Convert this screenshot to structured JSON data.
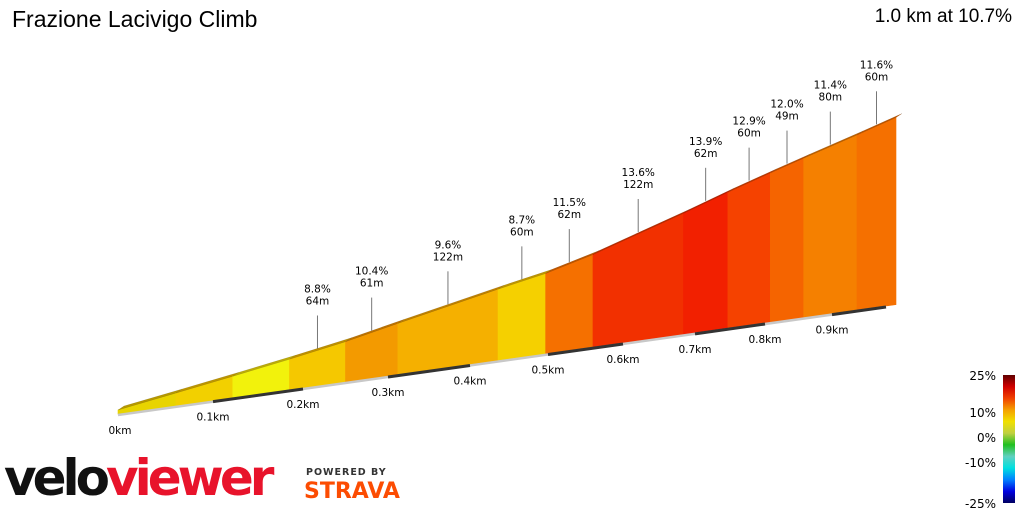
{
  "header": {
    "title": "Frazione Lacivigo Climb",
    "summary": "1.0 km at 10.7%"
  },
  "branding": {
    "velo": "velo",
    "viewer": "viewer",
    "powered_by": "POWERED BY",
    "strava": "STRAVA"
  },
  "chart_data": {
    "type": "area",
    "title": "Frazione Lacivigo Climb",
    "distance_km": 1.0,
    "avg_gradient_pct": 10.7,
    "x_ticks": [
      "0km",
      "0.1km",
      "0.2km",
      "0.3km",
      "0.4km",
      "0.5km",
      "0.6km",
      "0.7km",
      "0.8km",
      "0.9km"
    ],
    "segments": [
      {
        "length_m": 60,
        "label": null,
        "color": "#e8d400"
      },
      {
        "length_m": 60,
        "label": null,
        "color": "#f2d000"
      },
      {
        "length_m": 62,
        "label": null,
        "color": "#f2f20c"
      },
      {
        "length_m": 64,
        "gradient_pct": 8.8,
        "label": [
          "8.8%",
          "64m"
        ],
        "color": "#f5c800"
      },
      {
        "length_m": 61,
        "gradient_pct": 10.4,
        "label": [
          "10.4%",
          "61m"
        ],
        "color": "#f39a00"
      },
      {
        "length_m": 122,
        "gradient_pct": 9.6,
        "label": [
          "9.6%",
          "122m"
        ],
        "color": "#f5b000"
      },
      {
        "length_m": 60,
        "gradient_pct": 8.7,
        "label": [
          "8.7%",
          "60m"
        ],
        "color": "#f5d000"
      },
      {
        "length_m": 62,
        "gradient_pct": 11.5,
        "label": [
          "11.5%",
          "62m"
        ],
        "color": "#f57000"
      },
      {
        "length_m": 122,
        "gradient_pct": 13.6,
        "label": [
          "13.6%",
          "122m"
        ],
        "color": "#f23000"
      },
      {
        "length_m": 62,
        "gradient_pct": 13.9,
        "label": [
          "13.9%",
          "62m"
        ],
        "color": "#f22000"
      },
      {
        "length_m": 60,
        "gradient_pct": 12.9,
        "label": [
          "12.9%",
          "60m"
        ],
        "color": "#f54200"
      },
      {
        "length_m": 49,
        "gradient_pct": 12.0,
        "label": [
          "12.0%",
          "49m"
        ],
        "color": "#f56400"
      },
      {
        "length_m": 80,
        "gradient_pct": 11.4,
        "label": [
          "11.4%",
          "80m"
        ],
        "color": "#f58000"
      },
      {
        "length_m": 60,
        "gradient_pct": 11.6,
        "label": [
          "11.6%",
          "60m"
        ],
        "color": "#f57000"
      }
    ],
    "legend": {
      "labels": [
        "25%",
        "10%",
        "0%",
        "-10%",
        "-25%"
      ],
      "range": [
        -25,
        25
      ],
      "colors": [
        "#000060",
        "#0000e0",
        "#0080ff",
        "#00e0e0",
        "#60d0c0",
        "#20c020",
        "#c0d040",
        "#f0e000",
        "#f5a000",
        "#f04000",
        "#d00000",
        "#600000"
      ],
      "placement": "bottom-right"
    }
  }
}
